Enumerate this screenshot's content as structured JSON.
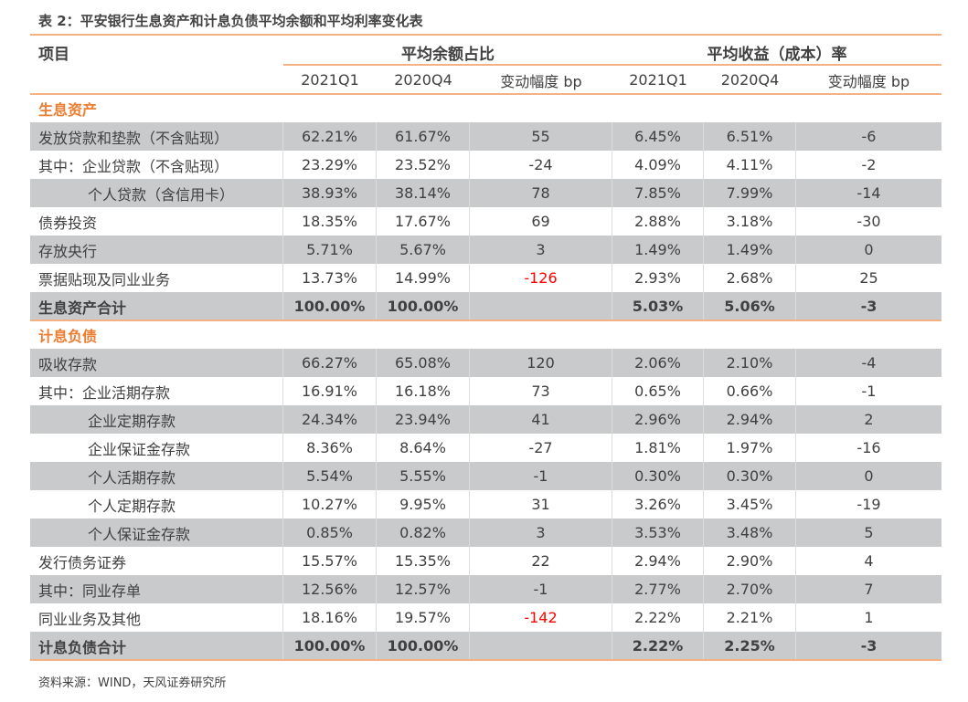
{
  "title": "表 2：平安银行生息资产和计息负债平均余额和平均利率变化表",
  "header": {
    "item": "项目",
    "group1": "平均余额占比",
    "group2": "平均收益（成本）率",
    "cols": [
      "2021Q1",
      "2020Q4",
      "变动幅度 bp",
      "2021Q1",
      "2020Q4",
      "变动幅度 bp"
    ]
  },
  "accent_color": "#ed7d31",
  "sections": [
    {
      "name": "生息资产",
      "rows": [
        {
          "label": "发放贷款和垫款（不含贴现）",
          "v": [
            "62.21%",
            "61.67%",
            "55",
            "6.45%",
            "6.51%",
            "-6"
          ]
        },
        {
          "label": "其中：企业贷款（不含贴现）",
          "v": [
            "23.29%",
            "23.52%",
            "-24",
            "4.09%",
            "4.11%",
            "-2"
          ]
        },
        {
          "label": "个人贷款（含信用卡）",
          "v": [
            "38.93%",
            "38.14%",
            "78",
            "7.85%",
            "7.99%",
            "-14"
          ]
        },
        {
          "label": "债券投资",
          "v": [
            "18.35%",
            "17.67%",
            "69",
            "2.88%",
            "3.18%",
            "-30"
          ]
        },
        {
          "label": "存放央行",
          "v": [
            "5.71%",
            "5.67%",
            "3",
            "1.49%",
            "1.49%",
            "0"
          ]
        },
        {
          "label": "票据贴现及同业业务",
          "v": [
            "13.73%",
            "14.99%",
            "-126",
            "2.93%",
            "2.68%",
            "25"
          ]
        },
        {
          "label": "生息资产合计",
          "v": [
            "100.00%",
            "100.00%",
            "",
            "5.03%",
            "5.06%",
            "-3"
          ]
        }
      ]
    },
    {
      "name": "计息负债",
      "rows": [
        {
          "label": "吸收存款",
          "v": [
            "66.27%",
            "65.08%",
            "120",
            "2.06%",
            "2.10%",
            "-4"
          ]
        },
        {
          "label": "其中：企业活期存款",
          "v": [
            "16.91%",
            "16.18%",
            "73",
            "0.65%",
            "0.66%",
            "-1"
          ]
        },
        {
          "label": "企业定期存款",
          "v": [
            "24.34%",
            "23.94%",
            "41",
            "2.96%",
            "2.94%",
            "2"
          ]
        },
        {
          "label": "企业保证金存款",
          "v": [
            "8.36%",
            "8.64%",
            "-27",
            "1.81%",
            "1.97%",
            "-16"
          ]
        },
        {
          "label": "个人活期存款",
          "v": [
            "5.54%",
            "5.55%",
            "-1",
            "0.30%",
            "0.30%",
            "0"
          ]
        },
        {
          "label": "个人定期存款",
          "v": [
            "10.27%",
            "9.95%",
            "31",
            "3.26%",
            "3.45%",
            "-19"
          ]
        },
        {
          "label": "个人保证金存款",
          "v": [
            "0.85%",
            "0.82%",
            "3",
            "3.53%",
            "3.48%",
            "5"
          ]
        },
        {
          "label": "发行债务证券",
          "v": [
            "15.57%",
            "15.35%",
            "22",
            "2.94%",
            "2.90%",
            "4"
          ]
        },
        {
          "label": "其中：同业存单",
          "v": [
            "12.56%",
            "12.57%",
            "-1",
            "2.77%",
            "2.70%",
            "7"
          ]
        },
        {
          "label": "同业业务及其他",
          "v": [
            "18.16%",
            "19.57%",
            "-142",
            "2.22%",
            "2.21%",
            "1"
          ]
        },
        {
          "label": "计息负债合计",
          "v": [
            "100.00%",
            "100.00%",
            "",
            "2.22%",
            "2.25%",
            "-3"
          ]
        }
      ]
    }
  ],
  "source": "资料来源：WIND，天风证券研究所"
}
